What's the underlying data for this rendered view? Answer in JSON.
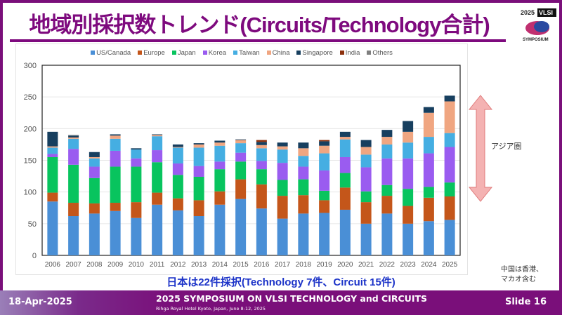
{
  "title": "地域別採択数トレンド(Circuits/Technology合計)",
  "logo": {
    "year": "2025",
    "name": "VLSI",
    "sub": "SYMPOSIUM"
  },
  "annotations": {
    "asia": "アジア圏",
    "china_note_1": "中国は香港、",
    "china_note_2": "マカオ含む",
    "japan_note": "日本は22件採択(Technology 7件、Circuit 15件)"
  },
  "footer": {
    "date": "18-Apr-2025",
    "conference": "2025 SYMPOSIUM ON VLSI TECHNOLOGY and CIRCUITS",
    "venue": "Rihga Royal Hotel Kyoto, Japan, June 8-12, 2025",
    "slide": "Slide 16"
  },
  "chart_data": {
    "type": "bar",
    "stacked": true,
    "legend_position": "top",
    "grid": true,
    "ylim": [
      0,
      300
    ],
    "yticks": [
      "0",
      "50",
      "100",
      "150",
      "200",
      "250",
      "300"
    ],
    "categories": [
      "2006",
      "2007",
      "2008",
      "2009",
      "2010",
      "2011",
      "2012",
      "2013",
      "2014",
      "2015",
      "2016",
      "2017",
      "2018",
      "2019",
      "2020",
      "2021",
      "2022",
      "2023",
      "2024",
      "2025"
    ],
    "series": [
      {
        "name": "US/Canada",
        "color": "#4a8fd6",
        "values": [
          85,
          62,
          66,
          70,
          59,
          80,
          71,
          62,
          80,
          89,
          74,
          58,
          66,
          67,
          72,
          50,
          66,
          50,
          54,
          56
        ]
      },
      {
        "name": "Europe",
        "color": "#c4561a",
        "values": [
          14,
          21,
          16,
          13,
          25,
          19,
          19,
          25,
          21,
          31,
          38,
          36,
          29,
          20,
          35,
          34,
          28,
          28,
          37,
          37
        ]
      },
      {
        "name": "Japan",
        "color": "#08c45e",
        "values": [
          56,
          60,
          40,
          57,
          56,
          48,
          37,
          37,
          35,
          28,
          24,
          25,
          25,
          15,
          23,
          17,
          17,
          27,
          17,
          22
        ]
      },
      {
        "name": "Korea",
        "color": "#9a5cf0",
        "values": [
          5,
          25,
          18,
          25,
          13,
          19,
          18,
          17,
          12,
          14,
          13,
          27,
          20,
          32,
          25,
          38,
          42,
          48,
          53,
          56
        ]
      },
      {
        "name": "Taiwan",
        "color": "#45aee2",
        "values": [
          10,
          16,
          13,
          19,
          14,
          22,
          25,
          29,
          25,
          15,
          20,
          21,
          17,
          27,
          28,
          20,
          22,
          25,
          26,
          22
        ]
      },
      {
        "name": "China",
        "color": "#f0a681",
        "values": [
          2,
          2,
          2,
          5,
          0,
          2,
          1,
          5,
          5,
          5,
          5,
          5,
          12,
          12,
          4,
          12,
          12,
          17,
          38,
          50
        ]
      },
      {
        "name": "Singapore",
        "color": "#173f5f",
        "values": [
          23,
          3,
          8,
          2,
          2,
          1,
          4,
          2,
          3,
          1,
          5,
          6,
          9,
          7,
          8,
          11,
          11,
          17,
          9,
          9
        ]
      },
      {
        "name": "India",
        "color": "#8c300c",
        "values": [
          0,
          0,
          0,
          0,
          0,
          0,
          0,
          0,
          0,
          0,
          3,
          0,
          0,
          2,
          0,
          0,
          0,
          0,
          0,
          0
        ]
      },
      {
        "name": "Others",
        "color": "#7f7f7f",
        "values": [
          0,
          1,
          0,
          0,
          0,
          0,
          0,
          0,
          0,
          0,
          0,
          0,
          0,
          0,
          0,
          0,
          0,
          0,
          0,
          0
        ]
      }
    ]
  }
}
